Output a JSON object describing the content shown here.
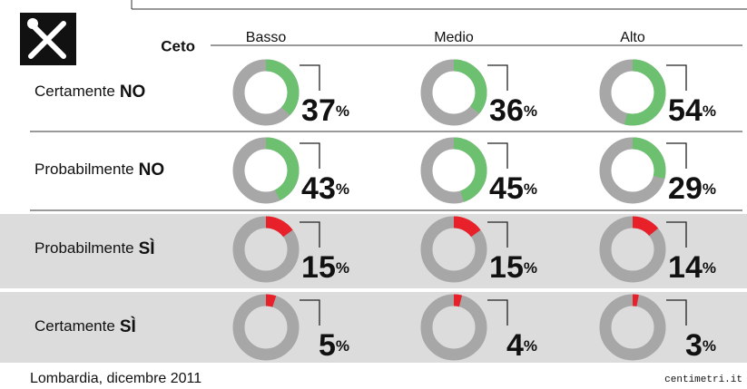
{
  "chart_data": {
    "type": "donut",
    "header": "Ceto",
    "categories": [
      "Basso",
      "Medio",
      "Alto"
    ],
    "unit": "%",
    "rows": [
      {
        "name": "Certamente",
        "emphasis": "NO",
        "color": "#6cc070",
        "values": [
          37,
          36,
          54
        ]
      },
      {
        "name": "Probabilmente",
        "emphasis": "NO",
        "color": "#6cc070",
        "values": [
          43,
          45,
          29
        ]
      },
      {
        "name": "Probabilmente",
        "emphasis": "SÌ",
        "color": "#e8202a",
        "values": [
          15,
          15,
          14
        ]
      },
      {
        "name": "Certamente",
        "emphasis": "SÌ",
        "color": "#e8202a",
        "values": [
          5,
          4,
          3
        ]
      }
    ],
    "footer": "Lombardia, dicembre 2011",
    "brand": "centimetri.it"
  }
}
